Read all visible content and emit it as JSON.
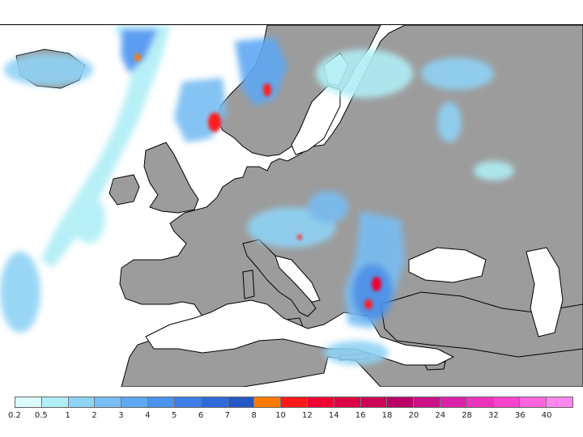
{
  "map": {
    "region": "Europe precipitation map",
    "colors": {
      "sea": "#ffffff",
      "land": "#9c9c9c",
      "border": "#000000"
    },
    "precip_features": [
      "Iceland light precip",
      "North Atlantic frontal band",
      "Norway coast heavy precip",
      "Scandinavia scattered",
      "Alps / central Europe",
      "Balkans / Greece heavy",
      "Eastern Mediterranean",
      "Western Russia scattered",
      "Atlantic west of Iberia"
    ]
  },
  "legend": {
    "colors": [
      "#dcfbfb",
      "#b0eef6",
      "#8fd3f5",
      "#78bdf3",
      "#5ea8f2",
      "#4a93f0",
      "#3c7ee6",
      "#2f6bd8",
      "#2557c4",
      "#ff7a00",
      "#ff1a1a",
      "#ee0033",
      "#dd0044",
      "#cc0055",
      "#bb0066",
      "#cc1188",
      "#dd22aa",
      "#ee33bb",
      "#f944cc",
      "#ff66dd",
      "#ff88ee"
    ],
    "ticks": [
      "0.2",
      "0.5",
      "1",
      "2",
      "3",
      "4",
      "5",
      "6",
      "7",
      "8",
      "10",
      "12",
      "14",
      "16",
      "18",
      "20",
      "24",
      "28",
      "32",
      "36",
      "40"
    ]
  }
}
